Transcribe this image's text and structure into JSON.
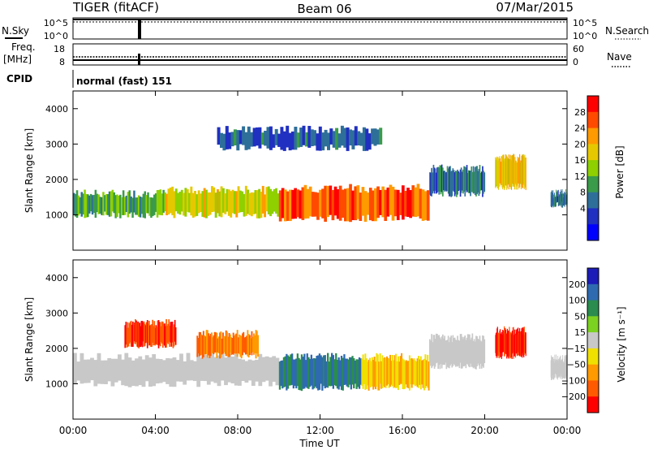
{
  "header": {
    "radar": "TIGER (fitACF)",
    "beam": "Beam 06",
    "date": "07/Mar/2015"
  },
  "noise_panel": {
    "left_label": "N.Sky",
    "left_ticks": [
      "10^5",
      "10^0"
    ],
    "right_ticks": [
      "10^5",
      "10^0"
    ],
    "right_label": "N.Search"
  },
  "freq_panel": {
    "left_label_1": "Freq.",
    "left_label_2": "[MHz]",
    "left_ticks": [
      "18",
      "8"
    ],
    "right_ticks": [
      "60",
      "0"
    ],
    "right_label": "Nave"
  },
  "cpid": {
    "label": "CPID",
    "value": "normal (fast) 151"
  },
  "time_axis": {
    "label": "Time UT",
    "ticks": [
      "00:00",
      "04:00",
      "08:00",
      "12:00",
      "16:00",
      "20:00",
      "00:00"
    ]
  },
  "power_colorbar": {
    "label": "Power [dB]",
    "ticks": [
      "28",
      "24",
      "20",
      "16",
      "12",
      "8",
      "4"
    ],
    "colors": [
      "#ff0000",
      "#ff4a00",
      "#ff9a00",
      "#e6c800",
      "#8ed000",
      "#3a9b4a",
      "#2e6f9a",
      "#2030c0",
      "#0000ff"
    ]
  },
  "velocity_colorbar": {
    "label": "Velocity [m s⁻¹]",
    "ticks": [
      "200",
      "100",
      "50",
      "15",
      "−15",
      "−50",
      "−100",
      "−200"
    ],
    "colors": [
      "#1c1cb8",
      "#2e6ab0",
      "#2a8c4e",
      "#7cd220",
      "#c8c8c8",
      "#f0e000",
      "#ff9a00",
      "#ff5a00",
      "#ff0000"
    ]
  },
  "chart_data": [
    {
      "type": "heatmap",
      "title": "",
      "xlabel": "Time UT",
      "ylabel": "Slant Range [km]",
      "xlim": [
        0,
        24
      ],
      "ylim": [
        0,
        4500
      ],
      "yticks": [
        "1000",
        "2000",
        "3000",
        "4000"
      ],
      "colorbar": "Power [dB]",
      "echo_regions": [
        {
          "t0": 0.0,
          "t1": 4.5,
          "r0": 1000,
          "r1": 1600,
          "value": 12
        },
        {
          "t0": 4.5,
          "t1": 10.0,
          "r0": 1000,
          "r1": 1700,
          "value": 18
        },
        {
          "t0": 10.0,
          "t1": 17.3,
          "r0": 900,
          "r1": 1750,
          "value": 26
        },
        {
          "t0": 17.3,
          "t1": 20.0,
          "r0": 1600,
          "r1": 2300,
          "value": 8
        },
        {
          "t0": 20.5,
          "t1": 22.0,
          "r0": 1800,
          "r1": 2600,
          "value": 20
        },
        {
          "t0": 7.0,
          "t1": 15.0,
          "r0": 2900,
          "r1": 3400,
          "value": 6
        },
        {
          "t0": 23.2,
          "t1": 24.0,
          "r0": 1300,
          "r1": 1600,
          "value": 8
        }
      ]
    },
    {
      "type": "heatmap",
      "title": "",
      "xlabel": "Time UT",
      "ylabel": "Slant Range [km]",
      "xlim": [
        0,
        24
      ],
      "ylim": [
        0,
        4500
      ],
      "yticks": [
        "1000",
        "2000",
        "3000",
        "4000"
      ],
      "colorbar": "Velocity [m s⁻¹]",
      "echo_regions": [
        {
          "t0": 0.0,
          "t1": 10.0,
          "r0": 1000,
          "r1": 1750,
          "value": 0
        },
        {
          "t0": 2.5,
          "t1": 5.0,
          "r0": 2100,
          "r1": 2700,
          "value": -200
        },
        {
          "t0": 6.0,
          "t1": 9.0,
          "r0": 1800,
          "r1": 2400,
          "value": -100
        },
        {
          "t0": 10.0,
          "t1": 14.0,
          "r0": 900,
          "r1": 1750,
          "value": 100
        },
        {
          "t0": 14.0,
          "t1": 17.3,
          "r0": 900,
          "r1": 1750,
          "value": -50
        },
        {
          "t0": 17.3,
          "t1": 20.0,
          "r0": 1500,
          "r1": 2300,
          "value": 0
        },
        {
          "t0": 20.5,
          "t1": 22.0,
          "r0": 1800,
          "r1": 2500,
          "value": -200
        },
        {
          "t0": 23.2,
          "t1": 24.0,
          "r0": 1200,
          "r1": 1700,
          "value": 0
        }
      ]
    }
  ]
}
